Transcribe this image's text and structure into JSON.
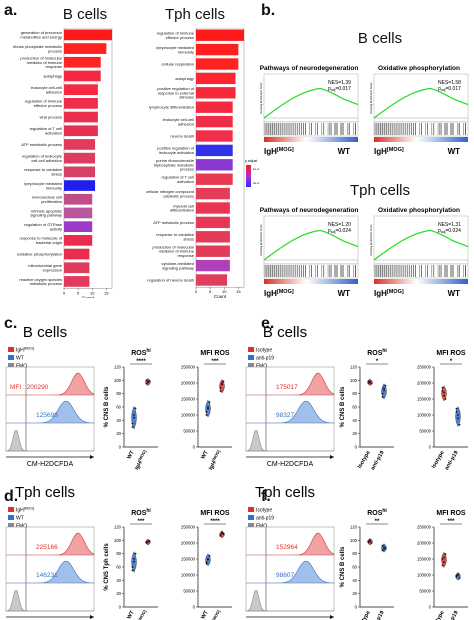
{
  "panels": {
    "a": "a.",
    "b": "b.",
    "c": "c.",
    "d": "d.",
    "e": "e.",
    "f": "f."
  },
  "panel_a": {
    "colors": {
      "high": "#ff1a1a",
      "low": "#2b2bff",
      "mid": "#b030c8"
    },
    "legend": {
      "title": "p.adjust",
      "ticks": [
        "1e-2",
        "2e-2"
      ]
    },
    "b_cells": {
      "title": "B cells",
      "xlabel": "Count",
      "xticks": [
        "0",
        "5",
        "10",
        "15"
      ],
      "terms": [
        "generation of precursor metabolites and energy",
        "ribose phosphate metabolic process",
        "production of molecular mediator of immune response",
        "autophagy",
        "leukocyte cell-cell adhesion",
        "regulation of immune effector process",
        "viral process",
        "regulation of T cell activation",
        "ATP metabolic process",
        "regulation of leukocyte cell-cell adhesion",
        "response to oxidative stress",
        "lymphocyte mediated immunity",
        "mononuclear cell proliferation",
        "intrinsic apoptotic signaling pathway",
        "regulation of GTPase activity",
        "response to molecule of bacterial origin",
        "oxidative phosphorylation",
        "mitochondrial gene expression",
        "reactive oxygen species metabolic process"
      ],
      "counts": [
        17,
        15,
        13,
        13,
        12,
        12,
        12,
        12,
        11,
        11,
        11,
        11,
        10,
        10,
        10,
        10,
        9,
        9,
        9
      ],
      "padj_color": [
        "#ff1a1a",
        "#ff2020",
        "#ff2424",
        "#f72840",
        "#f62a42",
        "#f02c4a",
        "#ec2e4e",
        "#e83052",
        "#e03a5c",
        "#dc3c60",
        "#d84064",
        "#2020ee",
        "#c04c88",
        "#b856a0",
        "#9c3cc8",
        "#ea2c4e",
        "#ea2c4e",
        "#e03a5c",
        "#e03a5c"
      ]
    },
    "tph_cells": {
      "title": "Tph cells",
      "xlabel": "Count",
      "xticks": [
        "0",
        "5",
        "10",
        "15"
      ],
      "terms": [
        "regulation of immune effector process",
        "lymphocyte mediated immunity",
        "cellular respiration",
        "autophagy",
        "positive regulation of response to external stimulus",
        "lymphocyte differentiation",
        "leukocyte cell-cell adhesion",
        "neuron death",
        "positive regulation of leukocyte activation",
        "purine ribonucleoside triphosphate metabolic process",
        "regulation of T cell activation",
        "cellular nitrogen compound catabolic process",
        "myeloid cell differentiation",
        "ATP metabolic process",
        "response to oxidative stress",
        "production of molecular mediator of immune response",
        "cytokine-mediated signaling pathway",
        "regulation of neuron death"
      ],
      "counts": [
        17,
        15,
        15,
        14,
        14,
        13,
        13,
        13,
        13,
        13,
        13,
        12,
        12,
        12,
        12,
        12,
        12,
        11
      ],
      "padj_color": [
        "#ff1a1a",
        "#ff1f1f",
        "#ff2222",
        "#fb2630",
        "#f8283a",
        "#f52a40",
        "#f02c46",
        "#ee2e4a",
        "#3030e8",
        "#8a38d0",
        "#e83a52",
        "#e43c56",
        "#ea3450",
        "#e63854",
        "#e43a56",
        "#e23c58",
        "#b040b8",
        "#e03e5a"
      ]
    }
  },
  "panel_b": {
    "colors": {
      "curve": "#22dd22",
      "line": "#111111"
    },
    "b_title": "B cells",
    "tph_title": "Tph cells",
    "ylabel": "Running Enrichment Score",
    "group_left": "IgH",
    "group_left_sup": "[MOG]",
    "group_right": "WT",
    "plots": [
      {
        "title": "Pathways of neurodegeneration",
        "nes": "NES=1.39",
        "p": "p",
        "p_sub": "adj",
        "p_val": "=0.017"
      },
      {
        "title": "Oxidative phosphorylation",
        "nes": "NES=1.58",
        "p": "p",
        "p_sub": "adj",
        "p_val": "=0.017"
      },
      {
        "title": "Pathways of neurodegeneration",
        "nes": "NES=1.20",
        "p": "p",
        "p_sub": "adj",
        "p_val": "=0.024"
      },
      {
        "title": "Oxidative phosphorylation",
        "nes": "NES=1.31",
        "p": "p",
        "p_sub": "adj",
        "p_val": "=0.024"
      }
    ]
  },
  "flow": {
    "xlabel": "CM-H2DCFDA",
    "c": {
      "title": "B cells",
      "legend": [
        "IgH",
        "WT",
        "FMO"
      ],
      "legend_sup": "[MOG]",
      "mfi_label": "MFI : ",
      "v1": "200290",
      "v2": "125698",
      "colors": [
        "#e03030",
        "#3070d0",
        "#888888"
      ]
    },
    "d": {
      "title": "Tph cells",
      "legend": [
        "IgH",
        "WT",
        "FMO"
      ],
      "legend_sup": "[MOG]",
      "v1": "225166",
      "v2": "146231",
      "colors": [
        "#e03030",
        "#3070d0",
        "#888888"
      ]
    },
    "e": {
      "title": "B cells",
      "legend": [
        "Isotype",
        "anti-p19",
        "FMO"
      ],
      "v1": "175017",
      "v2": "98327",
      "colors": [
        "#e03030",
        "#3070d0",
        "#888888"
      ]
    },
    "f": {
      "title": "Tph cells",
      "legend": [
        "Isotype",
        "anti-p19",
        "FMO"
      ],
      "v1": "152964",
      "v2": "98607",
      "colors": [
        "#e03030",
        "#3070d0",
        "#888888"
      ]
    }
  },
  "violins": {
    "ros_title": "ROS",
    "ros_sup": "hi",
    "mfi_title": "MFI ROS",
    "c": {
      "ylabel": "% CNS B cells",
      "sig_ros": "****",
      "sig_mfi": "***",
      "ros_ticks": [
        "0",
        "20",
        "40",
        "60",
        "80",
        "100",
        "120"
      ],
      "mfi_ticks": [
        "0",
        "50000",
        "100000",
        "150000",
        "200000",
        "250000"
      ],
      "xlabels": [
        "WT",
        "IgH"
      ],
      "x_sup": "[MOG]",
      "ros_vals": {
        "WT": [
          35,
          48,
          58,
          30,
          44
        ],
        "IgH": [
          100,
          97,
          99,
          95,
          98
        ]
      },
      "mfi_vals": {
        "WT": [
          110000,
          125000,
          140000,
          100000,
          120000
        ],
        "IgH": [
          185000,
          195000,
          205000,
          175000,
          200000
        ]
      }
    },
    "d": {
      "ylabel": "% CNS Tph cells",
      "sig_ros": "***",
      "sig_mfi": "****",
      "ros_ticks": [
        "0",
        "20",
        "40",
        "60",
        "80",
        "100",
        "120"
      ],
      "mfi_ticks": [
        "0",
        "50000",
        "100000",
        "150000",
        "200000",
        "250000"
      ],
      "xlabels": [
        "WT",
        "IgH"
      ],
      "x_sup": "[MOG]",
      "ros_vals": {
        "WT": [
          60,
          72,
          80,
          55,
          68
        ],
        "IgH": [
          97,
          98,
          99,
          96,
          98
        ]
      },
      "mfi_vals": {
        "WT": [
          140000,
          150000,
          160000,
          135000,
          148000
        ],
        "IgH": [
          225000,
          230000,
          228000,
          222000,
          232000
        ]
      }
    },
    "e": {
      "ylabel": "% CNS B cells",
      "sig_ros": "*",
      "sig_mfi": "*",
      "ros_ticks": [
        "0",
        "20",
        "40",
        "60",
        "80",
        "100",
        "120"
      ],
      "mfi_ticks": [
        "0",
        "50000",
        "100000",
        "150000",
        "200000",
        "250000"
      ],
      "xlabels": [
        "Isotype",
        "anti-p19"
      ],
      "ros_vals": {
        "Isotype": [
          96,
          98,
          95,
          99,
          97
        ],
        "anti-p19": [
          80,
          88,
          92,
          75,
          85
        ]
      },
      "mfi_vals": {
        "Isotype": [
          175000,
          160000,
          150000,
          185000,
          170000
        ],
        "anti-p19": [
          110000,
          90000,
          70000,
          120000,
          100000
        ]
      }
    },
    "f": {
      "ylabel": "% CNS B cells",
      "sig_ros": "**",
      "sig_mfi": "***",
      "ros_ticks": [
        "0",
        "20",
        "40",
        "60",
        "80",
        "100",
        "120"
      ],
      "mfi_ticks": [
        "0",
        "50000",
        "100000",
        "150000",
        "200000",
        "250000"
      ],
      "xlabels": [
        "Isotype",
        "anti-p19"
      ],
      "ros_vals": {
        "Isotype": [
          97,
          99,
          96,
          98,
          100
        ],
        "anti-p19": [
          85,
          90,
          88,
          92,
          87
        ]
      },
      "mfi_vals": {
        "Isotype": [
          150000,
          140000,
          165000,
          130000,
          155000
        ],
        "anti-p19": [
          95000,
          100000,
          90000,
          98000,
          102000
        ]
      }
    }
  },
  "chart_data": [
    {
      "type": "bar",
      "title": "B cells",
      "xlabel": "Count",
      "categories": [
        "generation of precursor metabolites and energy",
        "ribose phosphate metabolic process",
        "production of molecular mediator of immune response",
        "autophagy",
        "leukocyte cell-cell adhesion",
        "regulation of immune effector process",
        "viral process",
        "regulation of T cell activation",
        "ATP metabolic process",
        "regulation of leukocyte cell-cell adhesion",
        "response to oxidative stress",
        "lymphocyte mediated immunity",
        "mononuclear cell proliferation",
        "intrinsic apoptotic signaling pathway",
        "regulation of GTPase activity",
        "response to molecule of bacterial origin",
        "oxidative phosphorylation",
        "mitochondrial gene expression",
        "reactive oxygen species metabolic process"
      ],
      "values": [
        17,
        15,
        13,
        13,
        12,
        12,
        12,
        12,
        11,
        11,
        11,
        11,
        10,
        10,
        10,
        10,
        9,
        9,
        9
      ],
      "xlim": [
        0,
        17
      ]
    },
    {
      "type": "bar",
      "title": "Tph cells",
      "xlabel": "Count",
      "categories": [
        "regulation of immune effector process",
        "lymphocyte mediated immunity",
        "cellular respiration",
        "autophagy",
        "positive regulation of response to external stimulus",
        "lymphocyte differentiation",
        "leukocyte cell-cell adhesion",
        "neuron death",
        "positive regulation of leukocyte activation",
        "purine ribonucleoside triphosphate metabolic process",
        "regulation of T cell activation",
        "cellular nitrogen compound catabolic process",
        "myeloid cell differentiation",
        "ATP metabolic process",
        "response to oxidative stress",
        "production of molecular mediator of immune response",
        "cytokine-mediated signaling pathway",
        "regulation of neuron death"
      ],
      "values": [
        17,
        15,
        15,
        14,
        14,
        13,
        13,
        13,
        13,
        13,
        13,
        12,
        12,
        12,
        12,
        12,
        12,
        11
      ],
      "xlim": [
        0,
        17
      ]
    },
    {
      "type": "line",
      "title": "Pathways of neurodegeneration",
      "series": [
        {
          "name": "B cells",
          "values": [
            0,
            0.1,
            0.2,
            0.3,
            0.4,
            0.45,
            0.4,
            0.3,
            0.1
          ]
        }
      ]
    },
    {
      "type": "scatter",
      "title": "ROS hi (c)",
      "ylabel": "% CNS B cells",
      "ylim": [
        0,
        120
      ]
    },
    {
      "type": "scatter",
      "title": "MFI ROS (c)",
      "ylim": [
        0,
        250000
      ]
    }
  ]
}
